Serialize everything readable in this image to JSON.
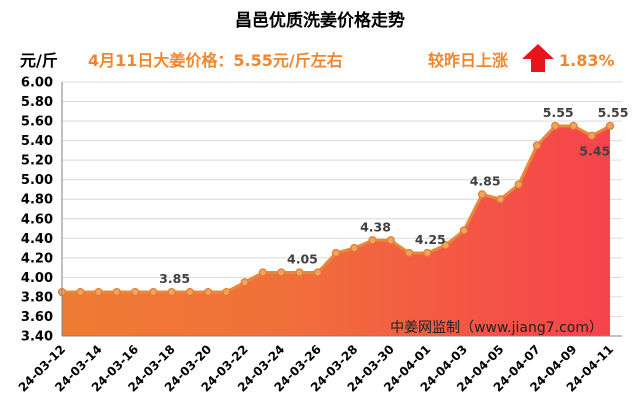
{
  "title": "昌邑优质洗姜价格走势",
  "unit_label": "元/斤",
  "subtitle": "4月11日大姜价格：5.55元/斤左右",
  "change": {
    "label": "较昨日上涨",
    "icon": "up-arrow-icon",
    "value": "1.83%"
  },
  "watermark": "中姜网监制（www.jiang7.com）",
  "colors": {
    "accent_text": "#F0862E",
    "arrow": "#E8141B",
    "line": "#E8883A",
    "marker_fill": "#F4A35E",
    "marker_stroke": "#E07A30",
    "area_left": "#EE7B33",
    "area_mid": "#F1703A",
    "area_right": "#F6434D",
    "grid": "#D9D9D9",
    "axis": "#808080"
  },
  "chart_data": {
    "type": "area",
    "x": [
      "24-03-12",
      "24-03-13",
      "24-03-14",
      "24-03-15",
      "24-03-16",
      "24-03-17",
      "24-03-18",
      "24-03-19",
      "24-03-20",
      "24-03-21",
      "24-03-22",
      "24-03-23",
      "24-03-24",
      "24-03-25",
      "24-03-26",
      "24-03-27",
      "24-03-28",
      "24-03-29",
      "24-03-30",
      "24-03-31",
      "24-04-01",
      "24-04-02",
      "24-04-03",
      "24-04-04",
      "24-04-05",
      "24-04-06",
      "24-04-07",
      "24-04-08",
      "24-04-09",
      "24-04-10",
      "24-04-11"
    ],
    "values": [
      3.85,
      3.85,
      3.85,
      3.85,
      3.85,
      3.85,
      3.85,
      3.85,
      3.85,
      3.85,
      3.95,
      4.05,
      4.05,
      4.05,
      4.05,
      4.25,
      4.3,
      4.38,
      4.38,
      4.25,
      4.25,
      4.33,
      4.48,
      4.85,
      4.8,
      4.95,
      5.35,
      5.55,
      5.55,
      5.45,
      5.55
    ],
    "x_tick_labels": [
      "24-03-12",
      "24-03-14",
      "24-03-16",
      "24-03-18",
      "24-03-20",
      "24-03-22",
      "24-03-24",
      "24-03-26",
      "24-03-28",
      "24-03-30",
      "24-04-01",
      "24-04-03",
      "24-04-05",
      "24-04-07",
      "24-04-09",
      "24-04-11"
    ],
    "y_tick_labels": [
      "3.40",
      "3.60",
      "3.80",
      "4.00",
      "4.20",
      "4.40",
      "4.60",
      "4.80",
      "5.00",
      "5.20",
      "5.40",
      "5.60",
      "5.80",
      "6.00"
    ],
    "ylim": [
      3.4,
      6.0
    ],
    "grid": true,
    "markers": true,
    "data_labels": [
      {
        "x": "24-03-18",
        "text": "3.85",
        "position": "above"
      },
      {
        "x": "24-03-25",
        "text": "4.05",
        "position": "above"
      },
      {
        "x": "24-03-29",
        "text": "4.38",
        "position": "above"
      },
      {
        "x": "24-04-01",
        "text": "4.25",
        "position": "above"
      },
      {
        "x": "24-04-04",
        "text": "4.85",
        "position": "above"
      },
      {
        "x": "24-04-08",
        "text": "5.55",
        "position": "above"
      },
      {
        "x": "24-04-10",
        "text": "5.45",
        "position": "below"
      },
      {
        "x": "24-04-11",
        "text": "5.55",
        "position": "above"
      }
    ]
  }
}
